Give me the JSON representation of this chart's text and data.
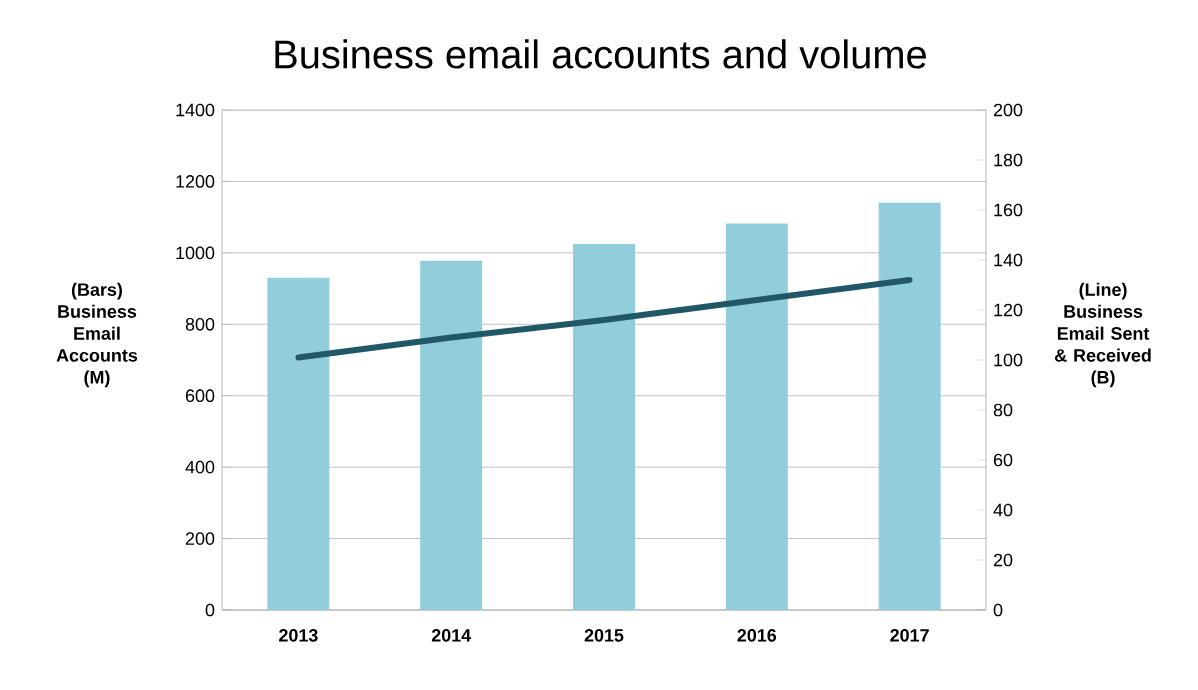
{
  "chart_data": {
    "type": "bar",
    "title": "Business email accounts and volume",
    "ylabel": "(Bars) Business Email Accounts (M)",
    "y2label": "(Line) Business Email Sent & Received (B)",
    "categories": [
      "2013",
      "2014",
      "2015",
      "2016",
      "2017"
    ],
    "series": [
      {
        "color": "#92cddc",
        "values": [
          930,
          978,
          1025,
          1082,
          1140
        ]
      },
      {
        "type": "line",
        "axis": "y2",
        "color": "#215868",
        "values": [
          101,
          109,
          116,
          124,
          132
        ]
      }
    ],
    "ylim": [
      0,
      1400
    ],
    "yticks": [
      0,
      200,
      400,
      600,
      800,
      1000,
      1200,
      1400
    ],
    "y2lim": [
      0,
      200
    ],
    "y2ticks": [
      0,
      20,
      40,
      60,
      80,
      100,
      120,
      140,
      160,
      180,
      200
    ],
    "grid": "y"
  }
}
